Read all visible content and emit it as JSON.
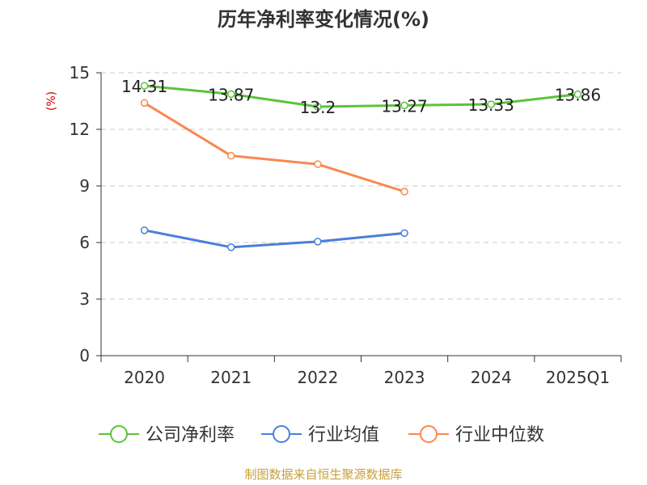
{
  "chart_data": {
    "type": "line",
    "title": "历年净利率变化情况(%)",
    "ylabel": "(%)",
    "ylim": [
      0,
      15
    ],
    "yticks": [
      0,
      3,
      6,
      9,
      12,
      15
    ],
    "grid": true,
    "legend_position": "bottom",
    "categories": [
      "2020",
      "2021",
      "2022",
      "2023",
      "2024",
      "2025Q1"
    ],
    "series": [
      {
        "name": "公司净利率",
        "color": "#5cc33a",
        "values": [
          14.31,
          13.87,
          13.2,
          13.27,
          13.33,
          13.86
        ],
        "show_labels": true
      },
      {
        "name": "行业均值",
        "color": "#4a7fdb",
        "values": [
          6.65,
          5.75,
          6.05,
          6.5,
          null,
          null
        ],
        "show_labels": false
      },
      {
        "name": "行业中位数",
        "color": "#f7894f",
        "values": [
          13.4,
          10.6,
          10.15,
          8.7,
          null,
          null
        ],
        "show_labels": false
      }
    ],
    "data_labels": [
      "14.31",
      "13.87",
      "13.2",
      "13.27",
      "13.33",
      "13.86"
    ]
  },
  "source": "制图数据来自恒生聚源数据库"
}
